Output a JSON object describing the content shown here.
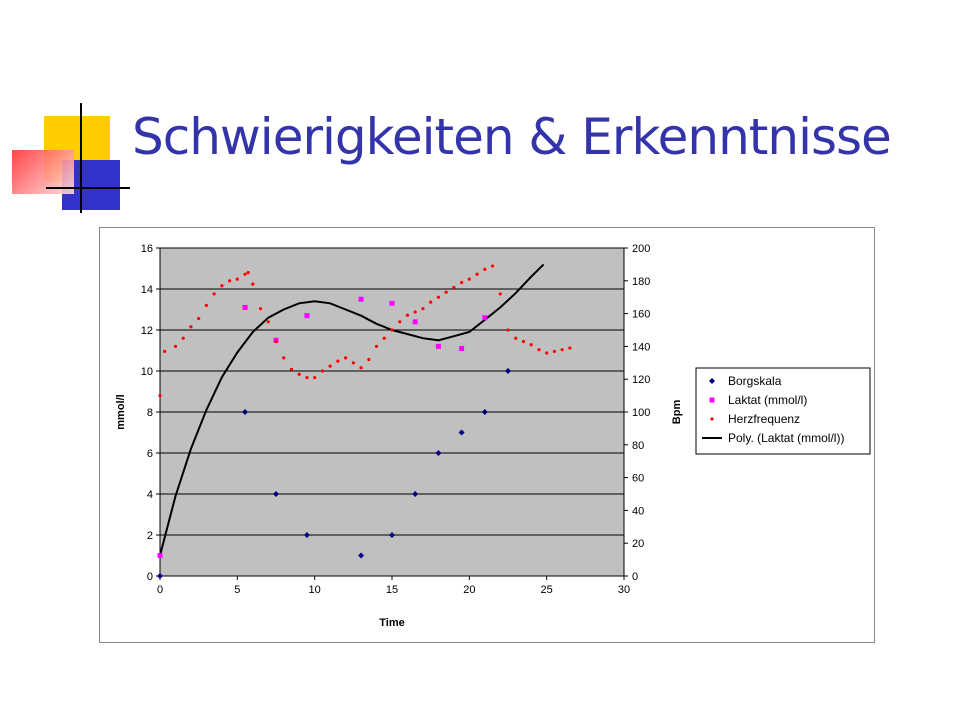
{
  "slide": {
    "title": "Schwierigkeiten & Erkenntnisse"
  },
  "colors": {
    "title": "#3333aa",
    "plot_background": "#c0c0c0",
    "borgskala": "#000080",
    "laktat": "#ff00ff",
    "herzfrequenz": "#ff0000",
    "poly": "#000000"
  },
  "chart_data": {
    "type": "scatter",
    "title": "",
    "xlabel": "Time",
    "ylabel": "mmol/l",
    "y2label": "Bpm",
    "xlim": [
      0,
      30
    ],
    "ylim": [
      0,
      16
    ],
    "y2lim": [
      0,
      200
    ],
    "x_ticks": [
      0,
      5,
      10,
      15,
      20,
      25,
      30
    ],
    "y_ticks": [
      0,
      2,
      4,
      6,
      8,
      10,
      12,
      14,
      16
    ],
    "y2_ticks": [
      0,
      20,
      40,
      60,
      80,
      100,
      120,
      140,
      160,
      180,
      200
    ],
    "grid": true,
    "legend_position": "right",
    "series": [
      {
        "name": "Borgskala",
        "axis": "left",
        "marker": "diamond",
        "x": [
          0,
          5.5,
          7.5,
          9.5,
          13,
          15,
          16.5,
          18,
          19.5,
          21,
          22.5
        ],
        "y": [
          0,
          8,
          4,
          2,
          1,
          2,
          4,
          6,
          7,
          8,
          10
        ]
      },
      {
        "name": "Laktat (mmol/l)",
        "axis": "left",
        "marker": "square",
        "x": [
          0,
          5.5,
          7.5,
          9.5,
          13,
          15,
          16.5,
          18,
          19.5,
          21
        ],
        "y": [
          1,
          13.1,
          11.5,
          12.7,
          13.5,
          13.3,
          12.4,
          11.2,
          11.1,
          12.6
        ]
      },
      {
        "name": "Herzfrequenz",
        "axis": "right",
        "marker": "dot",
        "x": [
          0,
          0.3,
          1,
          1.5,
          2,
          2.5,
          3,
          3.5,
          4,
          4.5,
          5,
          5.5,
          5.7,
          6,
          6.5,
          7,
          7.5,
          8,
          8.5,
          9,
          9.5,
          10,
          10.5,
          11,
          11.5,
          12,
          12.5,
          13,
          13.5,
          14,
          14.5,
          15,
          15.5,
          16,
          16.5,
          17,
          17.5,
          18,
          18.5,
          19,
          19.5,
          20,
          20.5,
          21,
          21.5,
          22,
          22.5,
          23,
          23.5,
          24,
          24.5,
          25,
          25.5,
          26,
          26.5
        ],
        "y": [
          110,
          137,
          140,
          145,
          152,
          157,
          165,
          172,
          177,
          180,
          181,
          184,
          185,
          178,
          163,
          155,
          143,
          133,
          126,
          123,
          121,
          121,
          125,
          128,
          131,
          133,
          130,
          127,
          132,
          140,
          145,
          150,
          155,
          159,
          161,
          163,
          167,
          170,
          173,
          176,
          179,
          181,
          184,
          187,
          189,
          172,
          150,
          145,
          143,
          141,
          138,
          136,
          137,
          138,
          139
        ]
      },
      {
        "name": "Poly. (Laktat (mmol/l))",
        "axis": "left",
        "type": "line",
        "x": [
          0,
          1,
          2,
          3,
          4,
          5,
          6,
          7,
          8,
          9,
          10,
          11,
          12,
          13,
          14,
          15,
          16,
          17,
          18,
          19,
          20,
          21,
          22,
          23,
          24,
          24.8
        ],
        "y": [
          1,
          3.9,
          6.2,
          8.1,
          9.7,
          10.9,
          11.9,
          12.6,
          13.0,
          13.3,
          13.4,
          13.3,
          13.0,
          12.7,
          12.3,
          12.0,
          11.8,
          11.6,
          11.5,
          11.7,
          11.9,
          12.5,
          13.1,
          13.8,
          14.6,
          15.2
        ]
      }
    ]
  }
}
